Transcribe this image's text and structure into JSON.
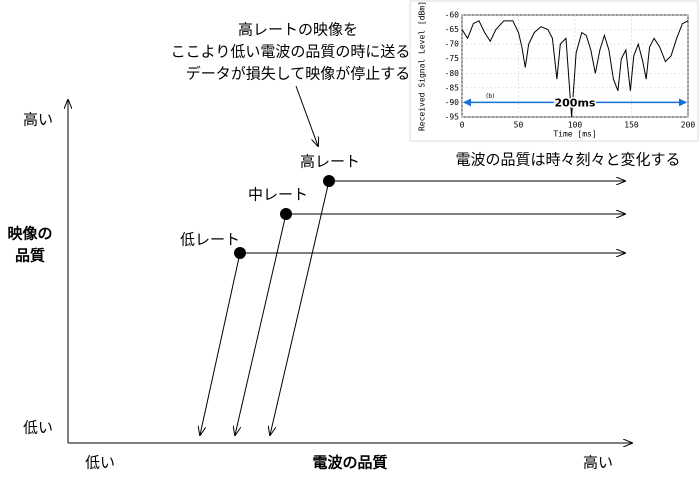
{
  "annotation": [
    "高レートの映像を",
    "ここより低い電波の品質の時に送ると",
    "データが損失して映像が停止する"
  ],
  "change_note": "電波の品質は時々刻々と変化する",
  "y_axis": {
    "label_line1": "映像の",
    "label_line2": "品質",
    "high": "高い",
    "low": "低い"
  },
  "x_axis": {
    "label": "電波の品質",
    "low": "低い",
    "high": "高い"
  },
  "rates": [
    "高レート",
    "中レート",
    "低レート"
  ],
  "chart_data": {
    "type": "line",
    "panel_label": "(b)",
    "xlabel": "Time [ms]",
    "ylabel": "Received Signal Level [dBm]",
    "span_label": "200ms",
    "xlim": [
      0,
      200
    ],
    "xticks": [
      0,
      50,
      100,
      150,
      200
    ],
    "ylim": [
      -95,
      -60
    ],
    "yticks": [
      -60,
      -65,
      -70,
      -75,
      -80,
      -85,
      -90,
      -95
    ],
    "grid": true,
    "color": "#000000",
    "x": [
      0,
      5,
      10,
      15,
      20,
      25,
      30,
      37,
      45,
      50,
      53,
      56,
      59,
      64,
      70,
      76,
      80,
      84,
      87,
      92,
      97,
      101,
      106,
      110,
      114,
      118,
      122,
      126,
      130,
      134,
      138,
      141,
      145,
      149,
      152,
      156,
      160,
      163,
      166,
      170,
      175,
      180,
      185,
      190,
      195,
      200
    ],
    "values": [
      -65,
      -68,
      -63,
      -62,
      -66,
      -69,
      -65,
      -62,
      -62,
      -66,
      -71,
      -78,
      -70,
      -66,
      -64,
      -65,
      -68,
      -82,
      -70,
      -68,
      -95,
      -73,
      -66,
      -67,
      -72,
      -80,
      -72,
      -67,
      -72,
      -82,
      -86,
      -75,
      -72,
      -86,
      -74,
      -70,
      -76,
      -82,
      -71,
      -68,
      -71,
      -76,
      -74,
      -68,
      -63,
      -62
    ]
  }
}
